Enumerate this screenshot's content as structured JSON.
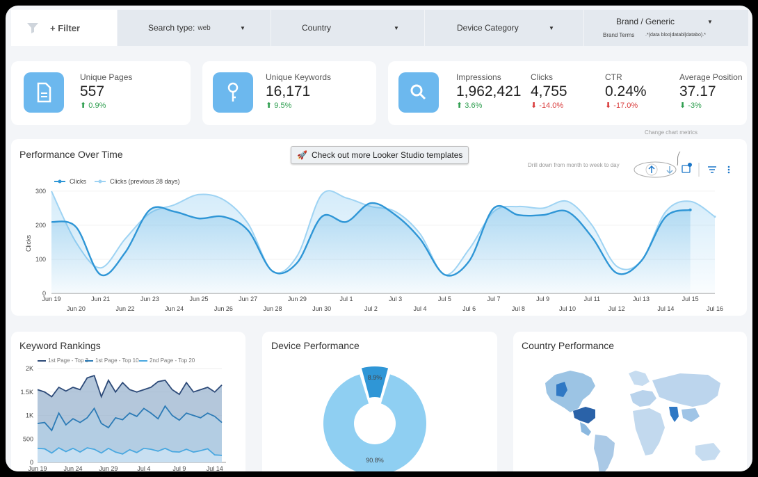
{
  "filters": {
    "filter_label": "+ Filter",
    "search_type_label": "Search type:",
    "search_type_value": "web",
    "country_label": "Country",
    "device_label": "Device Category",
    "brand_label": "Brand / Generic",
    "brand_terms_label": "Brand Terms",
    "brand_terms_value": ".*(data bloo|databl|databo).*"
  },
  "kpis": {
    "unique_pages": {
      "label": "Unique Pages",
      "value": "557",
      "delta": "0.9%",
      "direction": "up"
    },
    "unique_keywords": {
      "label": "Unique Keywords",
      "value": "16,171",
      "delta": "9.5%",
      "direction": "up"
    },
    "impressions": {
      "label": "Impressions",
      "value": "1,962,421",
      "delta": "3.6%",
      "direction": "up"
    },
    "clicks": {
      "label": "Clicks",
      "value": "4,755",
      "delta": "-14.0%",
      "direction": "down"
    },
    "ctr": {
      "label": "CTR",
      "value": "0.24%",
      "delta": "-17.0%",
      "direction": "down"
    },
    "avg_position": {
      "label": "Average Position",
      "value": "37.17",
      "delta": "-3%",
      "direction": "up"
    }
  },
  "performance": {
    "title": "Performance Over Time",
    "template_button": "Check out more Looker Studio templates",
    "change_metrics_hint": "Change chart metrics",
    "drill_hint": "Drill down from month to week to day"
  },
  "keyword": {
    "title": "Keyword Rankings"
  },
  "device": {
    "title": "Device Performance"
  },
  "country": {
    "title": "Country Performance"
  },
  "colors": {
    "accent": "#2f96d6",
    "light": "#9ed3f3",
    "icon_bg": "#6cb8ee",
    "dark": "#2d4a78"
  },
  "chart_data": [
    {
      "type": "line",
      "x": [
        "Jun 19",
        "Jun 20",
        "Jun 21",
        "Jun 22",
        "Jun 23",
        "Jun 24",
        "Jun 25",
        "Jun 26",
        "Jun 27",
        "Jun 28",
        "Jun 29",
        "Jun 30",
        "Jul 1",
        "Jul 2",
        "Jul 3",
        "Jul 4",
        "Jul 5",
        "Jul 6",
        "Jul 7",
        "Jul 8",
        "Jul 9",
        "Jul 10",
        "Jul 11",
        "Jul 12",
        "Jul 13",
        "Jul 14",
        "Jul 15",
        "Jul 16"
      ],
      "series": [
        {
          "name": "Clicks",
          "values": [
            210,
            195,
            55,
            120,
            245,
            240,
            220,
            225,
            185,
            65,
            90,
            225,
            210,
            265,
            230,
            160,
            55,
            95,
            250,
            230,
            230,
            240,
            165,
            60,
            95,
            225,
            245,
            null
          ]
        },
        {
          "name": "Clicks (previous 28 days)",
          "values": [
            300,
            150,
            75,
            160,
            235,
            260,
            290,
            275,
            205,
            65,
            110,
            290,
            280,
            255,
            240,
            175,
            55,
            130,
            240,
            255,
            250,
            270,
            200,
            80,
            95,
            240,
            270,
            225
          ]
        }
      ],
      "ylabel": "Clicks",
      "yticks": [
        0,
        100,
        200,
        300
      ],
      "ylim": [
        0,
        310
      ]
    },
    {
      "type": "area",
      "x": [
        "Jun 19",
        "Jun 20",
        "Jun 21",
        "Jun 22",
        "Jun 23",
        "Jun 24",
        "Jun 25",
        "Jun 26",
        "Jun 27",
        "Jun 28",
        "Jun 29",
        "Jun 30",
        "Jul 1",
        "Jul 2",
        "Jul 3",
        "Jul 4",
        "Jul 5",
        "Jul 6",
        "Jul 7",
        "Jul 8",
        "Jul 9",
        "Jul 10",
        "Jul 11",
        "Jul 12",
        "Jul 13",
        "Jul 14",
        "Jul 15"
      ],
      "xticks": [
        "Jun 19",
        "Jun 24",
        "Jun 29",
        "Jul 4",
        "Jul 9",
        "Jul 14"
      ],
      "series": [
        {
          "name": "1st Page - Top 3",
          "values": [
            300,
            290,
            200,
            310,
            230,
            300,
            220,
            310,
            280,
            200,
            300,
            220,
            180,
            270,
            210,
            300,
            280,
            240,
            300,
            230,
            220,
            280,
            220,
            250,
            290,
            160,
            150
          ]
        },
        {
          "name": "1st Page - Top 10",
          "values": [
            830,
            850,
            680,
            1050,
            800,
            930,
            850,
            950,
            1150,
            830,
            740,
            950,
            910,
            1050,
            980,
            1150,
            1050,
            930,
            1200,
            1000,
            900,
            1050,
            1000,
            950,
            1050,
            980,
            850
          ]
        },
        {
          "name": "2nd Page - Top 20",
          "values": [
            1550,
            1500,
            1400,
            1600,
            1520,
            1600,
            1550,
            1800,
            1850,
            1400,
            1750,
            1500,
            1700,
            1550,
            1500,
            1550,
            1600,
            1720,
            1750,
            1550,
            1450,
            1700,
            1500,
            1550,
            1600,
            1500,
            1650
          ]
        }
      ],
      "yticks": [
        "0",
        "500",
        "1K",
        "1.5K",
        "2K"
      ],
      "ylim": [
        0,
        2000
      ]
    },
    {
      "type": "pie",
      "labels": [
        "8.9%",
        "90.8%"
      ],
      "values": [
        8.9,
        90.8
      ],
      "colors": [
        "#2f96d6",
        "#8fcff2"
      ]
    }
  ]
}
